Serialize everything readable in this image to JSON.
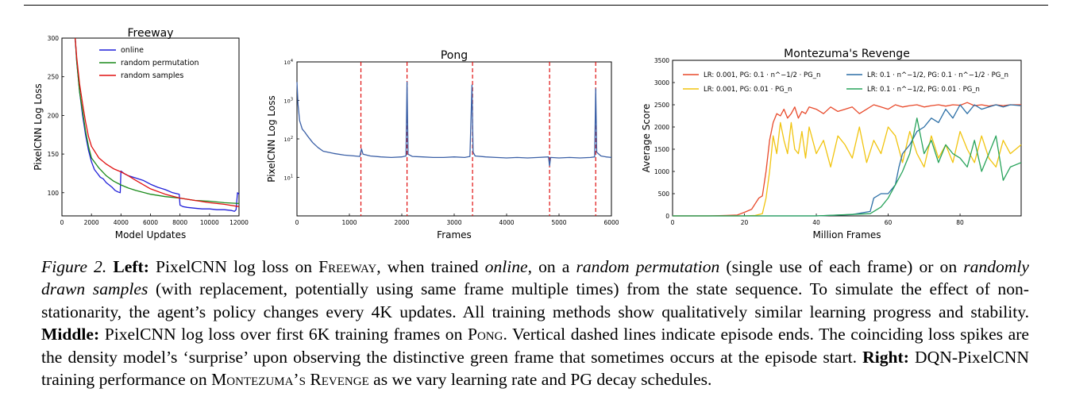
{
  "figure": {
    "caption": {
      "figure_label": "Figure 2.",
      "left_label": "Left:",
      "left_text_1": " PixelCNN log loss on ",
      "freeway_name": "Freeway",
      "left_text_2": ", when trained ",
      "online_word": "online",
      "left_text_3": ", on a ",
      "random_perm": "random permutation",
      "left_text_4": " (single use of each frame) or on ",
      "random_samples": "randomly drawn samples",
      "left_text_5": " (with replacement, potentially using same frame multiple times) from the state sequence. To simulate the effect of non-stationarity, the agent’s policy changes every 4K updates. All training methods show qualitatively similar learning progress and stability. ",
      "middle_label": "Middle:",
      "middle_text_1": " PixelCNN log loss over first 6K training frames on ",
      "pong_name": "Pong",
      "middle_text_2": ". Vertical dashed lines indicate episode ends. The coinciding loss spikes are the density model’s ‘surprise’ upon observing the distinctive green frame that sometimes occurs at the episode start. ",
      "right_label": "Right:",
      "right_text_1": " DQN-PixelCNN training performance on ",
      "montezuma_name": "Montezuma’s Revenge",
      "right_text_2": " as we vary learning rate and PG decay schedules."
    }
  },
  "chart_data": [
    {
      "type": "line",
      "title": "Freeway",
      "xlabel": "Model Updates",
      "ylabel": "PixelCNN Log Loss",
      "xlim": [
        0,
        12000
      ],
      "ylim": [
        70,
        300
      ],
      "x_ticks": [
        "0",
        "2000",
        "4000",
        "6000",
        "8000",
        "10000",
        "12000"
      ],
      "y_ticks": [
        "100",
        "150",
        "200",
        "250",
        "300"
      ],
      "legend_position": "top-right",
      "series": [
        {
          "name": "online",
          "color": "#1f1fd8",
          "x": [
            900,
            1000,
            1200,
            1400,
            1600,
            1800,
            2000,
            2200,
            2400,
            2600,
            2800,
            3000,
            3200,
            3400,
            3600,
            3800,
            3950,
            4000,
            4200,
            4500,
            5000,
            5500,
            6000,
            6500,
            7000,
            7500,
            7950,
            8000,
            8200,
            8500,
            9000,
            9500,
            10000,
            10500,
            11000,
            11500,
            11700,
            11800,
            11900,
            12000
          ],
          "values": [
            300,
            270,
            230,
            200,
            175,
            155,
            140,
            130,
            125,
            120,
            118,
            113,
            110,
            107,
            103,
            101,
            100,
            128,
            125,
            122,
            119,
            116,
            111,
            107,
            104,
            100,
            98,
            84,
            82,
            81,
            80,
            79,
            79,
            78,
            78,
            77,
            76,
            78,
            100,
            98
          ]
        },
        {
          "name": "random permutation",
          "color": "#1a8a1a",
          "x": [
            900,
            1000,
            1200,
            1400,
            1600,
            1800,
            2000,
            2500,
            3000,
            3500,
            4000,
            4500,
            5000,
            6000,
            7000,
            8000,
            9000,
            10000,
            11000,
            12000
          ],
          "values": [
            300,
            270,
            230,
            205,
            180,
            160,
            145,
            132,
            122,
            115,
            110,
            106,
            103,
            98,
            95,
            93,
            90,
            89,
            87,
            86
          ]
        },
        {
          "name": "random samples",
          "color": "#e01010",
          "x": [
            900,
            1000,
            1200,
            1400,
            1600,
            1800,
            2000,
            2500,
            3000,
            3500,
            4000,
            4500,
            5000,
            6000,
            7000,
            8000,
            9000,
            10000,
            11000,
            12000
          ],
          "values": [
            300,
            275,
            240,
            215,
            192,
            173,
            160,
            145,
            137,
            131,
            127,
            122,
            116,
            105,
            98,
            93,
            90,
            87,
            85,
            82
          ]
        }
      ]
    },
    {
      "type": "line",
      "title": "Pong",
      "xlabel": "Frames",
      "ylabel": "PixelCNN Log Loss",
      "xlim": [
        0,
        6000
      ],
      "yscale": "log",
      "ylim": [
        1,
        10000
      ],
      "x_ticks": [
        "0",
        "1000",
        "2000",
        "3000",
        "4000",
        "5000",
        "6000"
      ],
      "y_ticks": [
        "10^1",
        "10^2",
        "10^3",
        "10^4"
      ],
      "episode_ends": [
        1220,
        2100,
        3350,
        4820,
        5700
      ],
      "series": [
        {
          "name": "",
          "color": "#3a5fa6",
          "x": [
            0,
            20,
            50,
            100,
            150,
            200,
            300,
            400,
            500,
            700,
            900,
            1100,
            1200,
            1230,
            1260,
            1400,
            1600,
            1800,
            2000,
            2080,
            2100,
            2120,
            2200,
            2400,
            2600,
            2800,
            3000,
            3200,
            3300,
            3340,
            3360,
            3400,
            3600,
            3800,
            4000,
            4200,
            4400,
            4600,
            4800,
            4820,
            4840,
            5000,
            5200,
            5400,
            5600,
            5680,
            5700,
            5720,
            5800,
            5900,
            6000
          ],
          "values": [
            3000,
            800,
            300,
            180,
            150,
            120,
            80,
            60,
            48,
            42,
            38,
            36,
            35,
            55,
            40,
            36,
            34,
            33,
            34,
            36,
            3000,
            40,
            35,
            34,
            33,
            33,
            34,
            33,
            35,
            2500,
            45,
            36,
            34,
            33,
            32,
            33,
            32,
            33,
            34,
            20,
            33,
            32,
            33,
            32,
            33,
            34,
            2000,
            45,
            36,
            34,
            33
          ]
        }
      ]
    },
    {
      "type": "line",
      "title": "Montezuma's Revenge",
      "xlabel": "Million Frames",
      "ylabel": "Average Score",
      "xlim": [
        0,
        97
      ],
      "ylim": [
        0,
        3500
      ],
      "x_ticks": [
        "0",
        "20",
        "40",
        "60",
        "80"
      ],
      "y_ticks": [
        "0",
        "500",
        "1000",
        "1500",
        "2000",
        "2500",
        "3000",
        "3500"
      ],
      "legend_position": "top",
      "series": [
        {
          "name": "LR: 0.001, PG: 0.1 · n^−1/2 · PG_n",
          "color": "#e8492a",
          "x": [
            0,
            5,
            10,
            15,
            18,
            20,
            22,
            24,
            25,
            26,
            27,
            28,
            29,
            30,
            31,
            32,
            33,
            34,
            35,
            36,
            37,
            38,
            40,
            42,
            44,
            46,
            48,
            50,
            52,
            54,
            56,
            58,
            60,
            62,
            64,
            66,
            68,
            70,
            72,
            74,
            76,
            78,
            80,
            82,
            84,
            86,
            88,
            90,
            92,
            94,
            97
          ],
          "values": [
            0,
            0,
            0,
            10,
            20,
            80,
            150,
            400,
            450,
            1000,
            1700,
            2100,
            2300,
            2250,
            2400,
            2200,
            2300,
            2450,
            2200,
            2350,
            2300,
            2450,
            2400,
            2300,
            2450,
            2350,
            2400,
            2450,
            2300,
            2400,
            2500,
            2450,
            2400,
            2500,
            2450,
            2480,
            2500,
            2450,
            2480,
            2500,
            2470,
            2500,
            2490,
            2550,
            2480,
            2500,
            2470,
            2500,
            2480,
            2500,
            2500
          ]
        },
        {
          "name": "LR: 0.001, PG: 0.01 · PG_n",
          "color": "#f1c40f",
          "x": [
            0,
            20,
            23,
            25,
            26,
            27,
            28,
            29,
            30,
            31,
            32,
            33,
            34,
            35,
            36,
            37,
            38,
            40,
            42,
            44,
            46,
            48,
            50,
            52,
            54,
            56,
            58,
            60,
            62,
            64,
            66,
            68,
            70,
            72,
            74,
            76,
            78,
            80,
            82,
            84,
            86,
            88,
            90,
            92,
            94,
            97
          ],
          "values": [
            0,
            0,
            10,
            50,
            400,
            1000,
            1800,
            1400,
            2100,
            1700,
            1400,
            2100,
            1500,
            1400,
            1900,
            1300,
            2000,
            1400,
            1700,
            1100,
            1800,
            1600,
            1300,
            2000,
            1200,
            1700,
            1400,
            2000,
            1800,
            1200,
            1900,
            1400,
            1100,
            1800,
            1300,
            1600,
            1200,
            1900,
            1500,
            1200,
            1800,
            1300,
            1100,
            1700,
            1400,
            1600
          ]
        },
        {
          "name": "LR: 0.1 · n^−1/2, PG: 0.1 · n^−1/2 · PG_n",
          "color": "#2c6fa6",
          "x": [
            0,
            40,
            50,
            55,
            56,
            58,
            60,
            62,
            63,
            64,
            66,
            68,
            70,
            72,
            74,
            76,
            78,
            80,
            82,
            84,
            86,
            88,
            90,
            92,
            94,
            97
          ],
          "values": [
            0,
            0,
            30,
            100,
            400,
            500,
            500,
            700,
            1100,
            1400,
            1600,
            1900,
            2000,
            2200,
            2100,
            2400,
            2200,
            2500,
            2300,
            2500,
            2400,
            2450,
            2500,
            2450,
            2500,
            2480
          ]
        },
        {
          "name": "LR: 0.1 · n^−1/2, PG: 0.01 · PG_n",
          "color": "#27a35a",
          "x": [
            0,
            40,
            55,
            58,
            60,
            62,
            64,
            66,
            68,
            70,
            72,
            74,
            76,
            78,
            80,
            82,
            84,
            86,
            88,
            90,
            92,
            94,
            97
          ],
          "values": [
            0,
            0,
            50,
            200,
            400,
            700,
            1000,
            1400,
            2200,
            1400,
            1700,
            1200,
            1600,
            1400,
            1300,
            1100,
            1700,
            1000,
            1400,
            1800,
            800,
            1100,
            1200
          ]
        }
      ]
    }
  ]
}
